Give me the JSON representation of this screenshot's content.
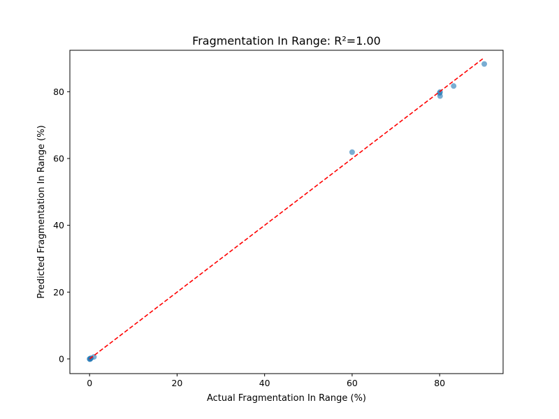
{
  "chart_data": {
    "type": "scatter",
    "title": "Fragmentation In Range: R²=1.00",
    "xlabel": "Actual Fragmentation In Range (%)",
    "ylabel": "Predicted Fragmentation In Range (%)",
    "xlim": [
      -4.5,
      94.5
    ],
    "ylim": [
      -4.4,
      92.4
    ],
    "xticks": [
      0,
      20,
      40,
      60,
      80
    ],
    "yticks": [
      0,
      20,
      40,
      60,
      80
    ],
    "grid": false,
    "point_color": "#1f77b4",
    "point_opacity": 0.6,
    "reference_line": {
      "style": "dashed",
      "color": "#ff0000",
      "x": [
        0,
        90
      ],
      "y": [
        0,
        90
      ]
    },
    "points": [
      {
        "x": 0,
        "y": 0
      },
      {
        "x": 0.1,
        "y": -0.1
      },
      {
        "x": 0.2,
        "y": 0.1
      },
      {
        "x": 0.3,
        "y": 0.2
      },
      {
        "x": 1.0,
        "y": 0.6
      },
      {
        "x": 60.0,
        "y": 61.9
      },
      {
        "x": 80.0,
        "y": 79.6
      },
      {
        "x": 80.1,
        "y": 79.9
      },
      {
        "x": 80.1,
        "y": 78.7
      },
      {
        "x": 83.2,
        "y": 81.7
      },
      {
        "x": 90.2,
        "y": 88.3
      }
    ]
  }
}
